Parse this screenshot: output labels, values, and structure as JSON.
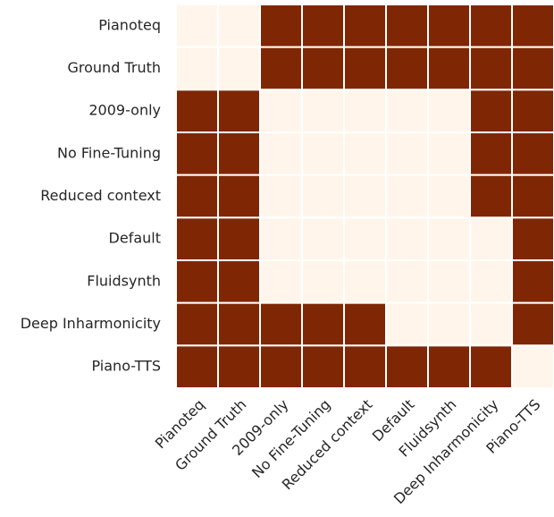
{
  "chart_data": {
    "type": "heatmap",
    "x_categories": [
      "Pianoteq",
      "Ground Truth",
      "2009-only",
      "No Fine-Tuning",
      "Reduced context",
      "Default",
      "Fluidsynth",
      "Deep Inharmonicity",
      "Piano-TTS"
    ],
    "y_categories": [
      "Pianoteq",
      "Ground Truth",
      "2009-only",
      "No Fine-Tuning",
      "Reduced context",
      "Default",
      "Fluidsynth",
      "Deep Inharmonicity",
      "Piano-TTS"
    ],
    "z": [
      [
        0,
        0,
        1,
        1,
        1,
        1,
        1,
        1,
        1
      ],
      [
        0,
        0,
        1,
        1,
        1,
        1,
        1,
        1,
        1
      ],
      [
        1,
        1,
        0,
        0,
        0,
        0,
        0,
        1,
        1
      ],
      [
        1,
        1,
        0,
        0,
        0,
        0,
        0,
        1,
        1
      ],
      [
        1,
        1,
        0,
        0,
        0,
        0,
        0,
        1,
        1
      ],
      [
        1,
        1,
        0,
        0,
        0,
        0,
        0,
        0,
        1
      ],
      [
        1,
        1,
        0,
        0,
        0,
        0,
        0,
        0,
        1
      ],
      [
        1,
        1,
        1,
        1,
        1,
        0,
        0,
        0,
        1
      ],
      [
        1,
        1,
        1,
        1,
        1,
        1,
        1,
        1,
        0
      ]
    ],
    "zlim": [
      0,
      1
    ],
    "colors": [
      "#fff5eb",
      "#7f2704"
    ]
  }
}
